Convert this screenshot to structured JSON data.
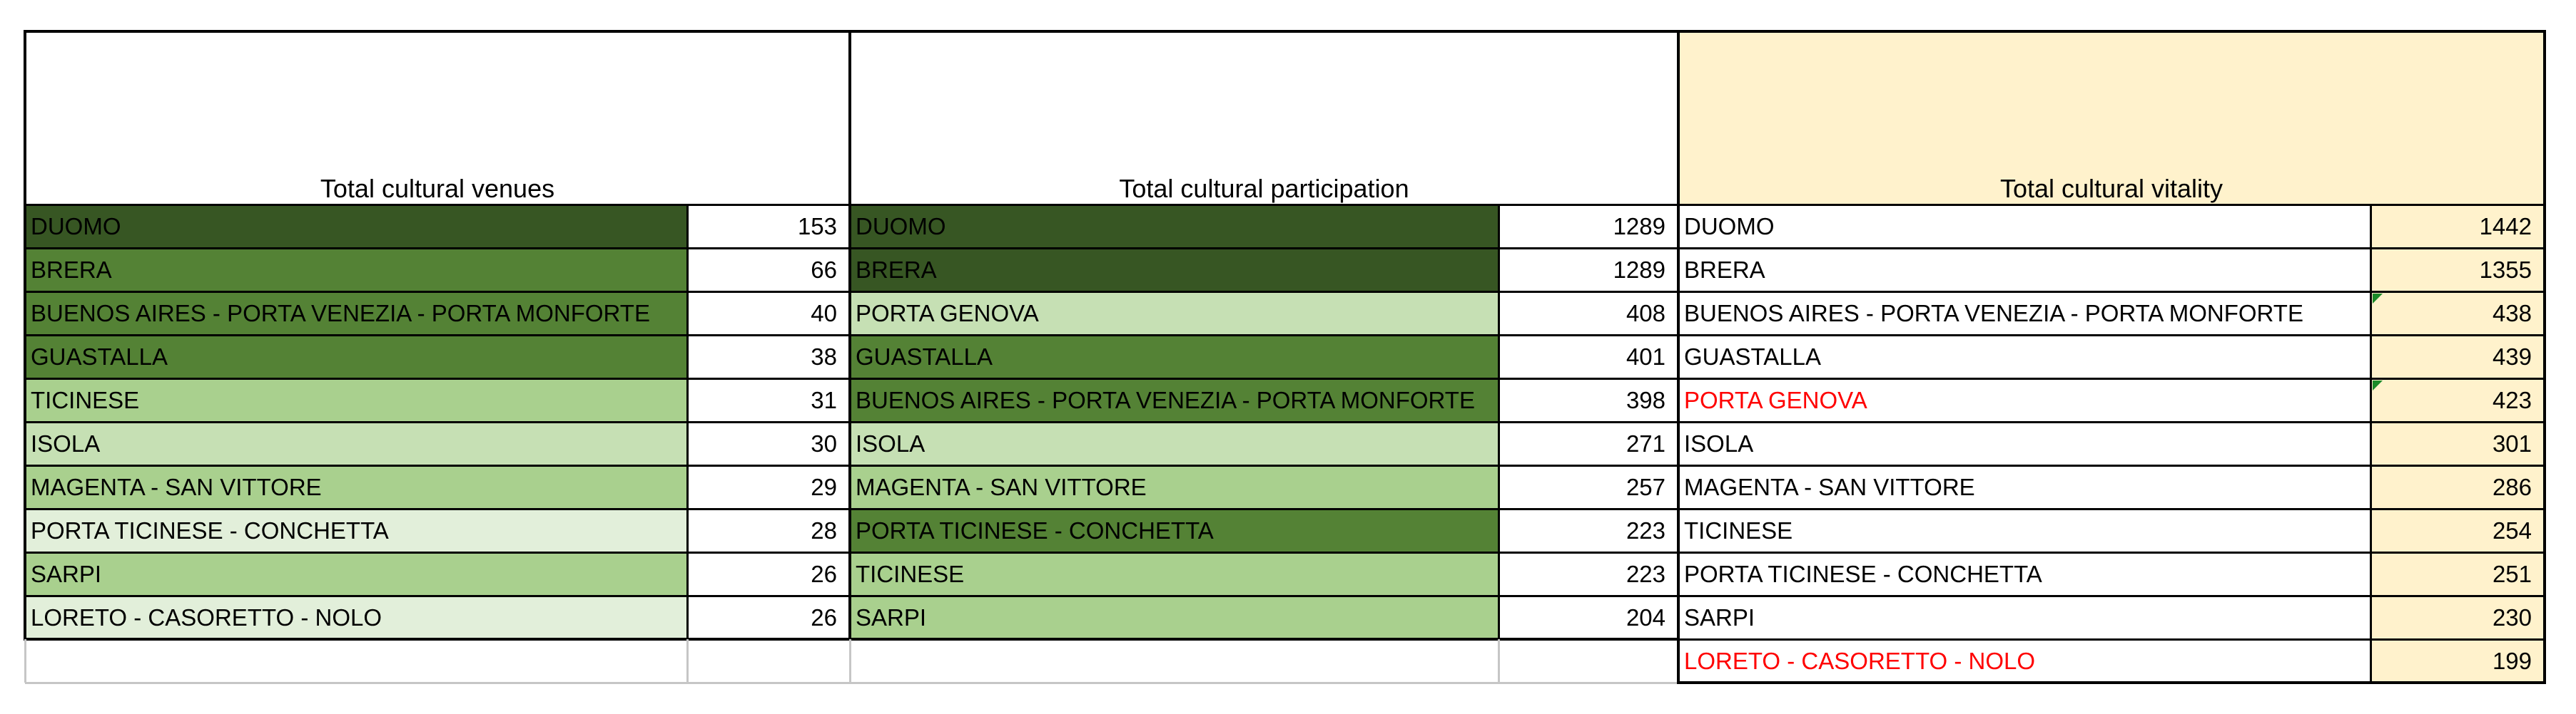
{
  "colors": {
    "very_dark_green": "#375623",
    "dark_green": "#548235",
    "mid_green": "#a9d08e",
    "light_green": "#c6e0b4",
    "pale_green": "#e2efda",
    "vitality_header": "#fff2cc",
    "vitality_value": "#fff2cc",
    "red_text": "#ff0000",
    "comment_marker": "#1a8a2a"
  },
  "tables": [
    {
      "header": "Total cultural venues",
      "rows": [
        {
          "name": "DUOMO",
          "value": "153",
          "fill": "very_dark_green"
        },
        {
          "name": "BRERA",
          "value": "66",
          "fill": "dark_green"
        },
        {
          "name": "BUENOS AIRES - PORTA VENEZIA - PORTA MONFORTE",
          "value": "40",
          "fill": "dark_green"
        },
        {
          "name": "GUASTALLA",
          "value": "38",
          "fill": "dark_green"
        },
        {
          "name": "TICINESE",
          "value": "31",
          "fill": "mid_green"
        },
        {
          "name": "ISOLA",
          "value": "30",
          "fill": "light_green"
        },
        {
          "name": "MAGENTA - SAN VITTORE",
          "value": "29",
          "fill": "mid_green"
        },
        {
          "name": "PORTA TICINESE - CONCHETTA",
          "value": "28",
          "fill": "pale_green"
        },
        {
          "name": "SARPI",
          "value": "26",
          "fill": "mid_green"
        },
        {
          "name": "LORETO - CASORETTO - NOLO",
          "value": "26",
          "fill": "pale_green"
        }
      ]
    },
    {
      "header": "Total cultural participation",
      "rows": [
        {
          "name": "DUOMO",
          "value": "1289",
          "fill": "very_dark_green"
        },
        {
          "name": "BRERA",
          "value": "1289",
          "fill": "very_dark_green"
        },
        {
          "name": "PORTA GENOVA",
          "value": "408",
          "fill": "light_green"
        },
        {
          "name": "GUASTALLA",
          "value": "401",
          "fill": "dark_green"
        },
        {
          "name": "BUENOS AIRES - PORTA VENEZIA - PORTA MONFORTE",
          "value": "398",
          "fill": "dark_green"
        },
        {
          "name": "ISOLA",
          "value": "271",
          "fill": "light_green"
        },
        {
          "name": "MAGENTA - SAN VITTORE",
          "value": "257",
          "fill": "mid_green"
        },
        {
          "name": "PORTA TICINESE - CONCHETTA",
          "value": "223",
          "fill": "dark_green"
        },
        {
          "name": "TICINESE",
          "value": "223",
          "fill": "mid_green"
        },
        {
          "name": "SARPI",
          "value": "204",
          "fill": "mid_green"
        }
      ]
    },
    {
      "header": "Total cultural vitality",
      "rows": [
        {
          "name": "DUOMO",
          "value": "1442"
        },
        {
          "name": "BRERA",
          "value": "1355"
        },
        {
          "name": "BUENOS AIRES - PORTA VENEZIA - PORTA MONFORTE",
          "value": "438",
          "comment": true
        },
        {
          "name": "GUASTALLA",
          "value": "439"
        },
        {
          "name": "PORTA GENOVA",
          "value": "423",
          "red": true,
          "comment": true
        },
        {
          "name": "ISOLA",
          "value": "301"
        },
        {
          "name": "MAGENTA - SAN VITTORE",
          "value": "286"
        },
        {
          "name": "TICINESE",
          "value": "254"
        },
        {
          "name": "PORTA TICINESE - CONCHETTA",
          "value": "251"
        },
        {
          "name": "SARPI",
          "value": "230"
        },
        {
          "name": "LORETO - CASORETTO - NOLO",
          "value": "199",
          "red": true
        }
      ]
    }
  ]
}
